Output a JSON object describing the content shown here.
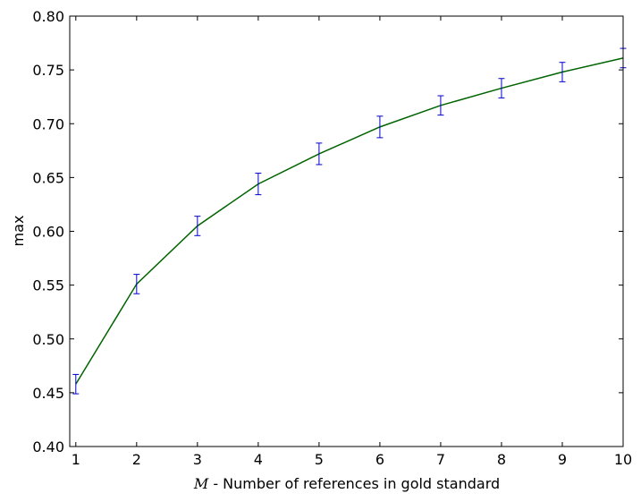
{
  "chart_data": {
    "type": "line",
    "title": "",
    "xlabel_var": "M",
    "xlabel": " - Number of references in gold standard",
    "ylabel": "max",
    "xlim": [
      0.9,
      10
    ],
    "ylim": [
      0.4,
      0.8
    ],
    "x_ticks": [
      "1",
      "2",
      "3",
      "4",
      "5",
      "6",
      "7",
      "8",
      "9",
      "10"
    ],
    "y_ticks": [
      "0.40",
      "0.45",
      "0.50",
      "0.55",
      "0.60",
      "0.65",
      "0.70",
      "0.75",
      "0.80"
    ],
    "grid": false,
    "legend": "none",
    "series": [
      {
        "x": [
          1,
          2,
          3,
          4,
          5,
          6,
          7,
          8,
          9,
          10
        ],
        "values": [
          0.458,
          0.551,
          0.605,
          0.644,
          0.672,
          0.697,
          0.717,
          0.733,
          0.748,
          0.761
        ],
        "error": [
          0.009,
          0.009,
          0.009,
          0.01,
          0.01,
          0.01,
          0.009,
          0.009,
          0.009,
          0.009
        ],
        "line_color": "#006400",
        "errorbar_color": "#0000cc"
      }
    ]
  }
}
